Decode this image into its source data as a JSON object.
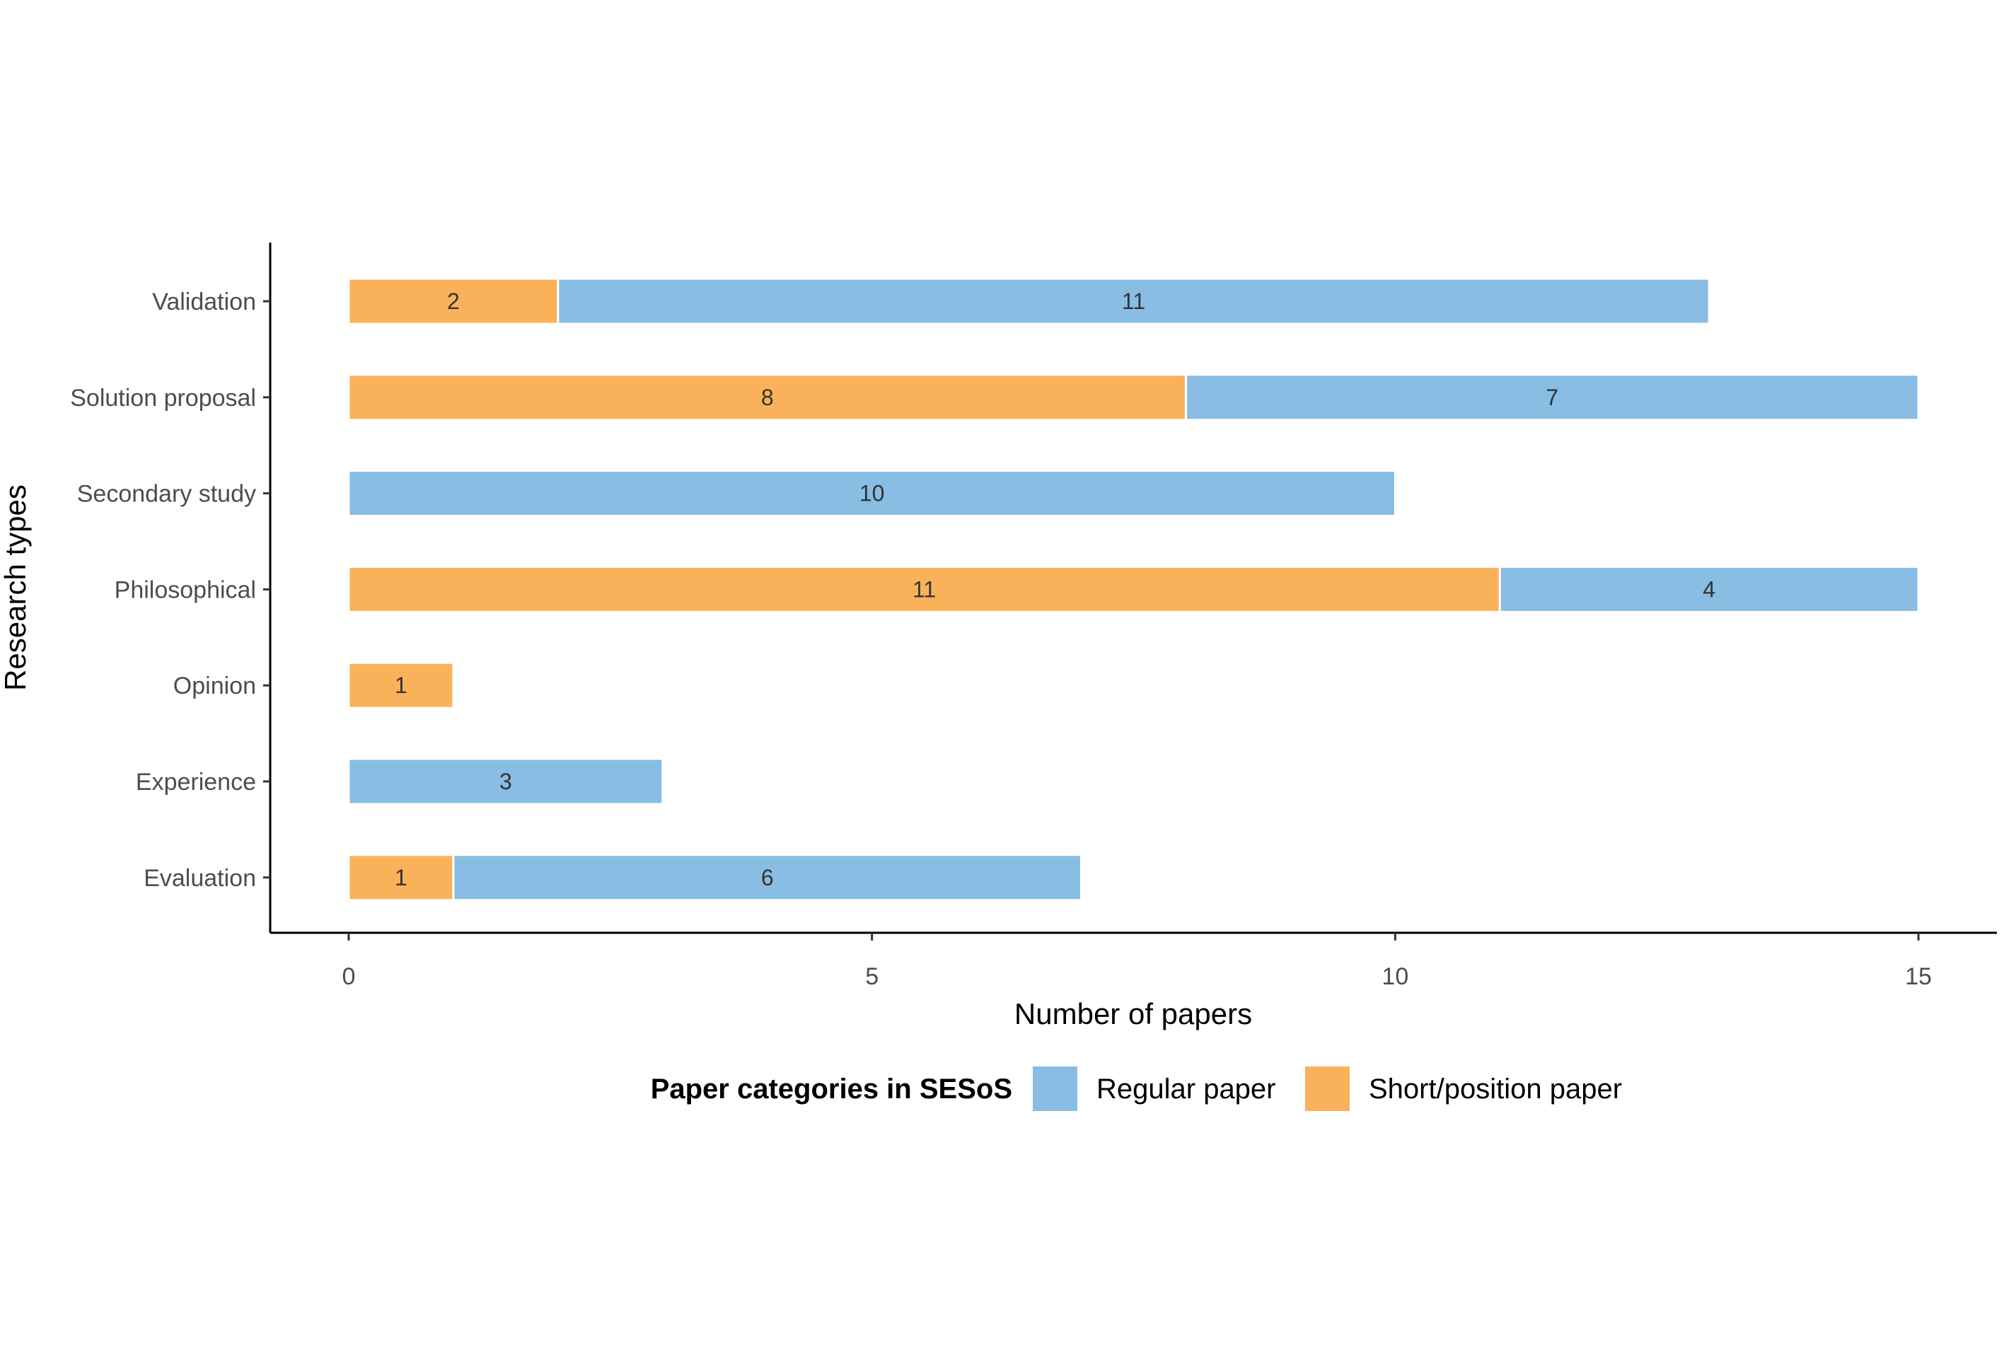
{
  "chart_data": {
    "type": "bar",
    "orientation": "horizontal",
    "stacked": true,
    "categories": [
      "Validation",
      "Solution proposal",
      "Secondary study",
      "Philosophical",
      "Opinion",
      "Experience",
      "Evaluation"
    ],
    "series": [
      {
        "name": "Short/position paper",
        "color": "#FAB25A",
        "values": [
          2,
          8,
          0,
          11,
          1,
          0,
          1
        ]
      },
      {
        "name": "Regular paper",
        "color": "#89BDE4",
        "values": [
          11,
          7,
          10,
          4,
          0,
          3,
          6
        ]
      }
    ],
    "xlabel": "Number of papers",
    "ylabel": "Research types",
    "xlim": [
      -0.75,
      15.75
    ],
    "xticks": [
      0,
      5,
      10,
      15
    ],
    "grid": false,
    "legend": {
      "title": "Paper categories in SESoS",
      "position": "bottom",
      "entries": [
        "Regular paper",
        "Short/position paper"
      ]
    }
  }
}
